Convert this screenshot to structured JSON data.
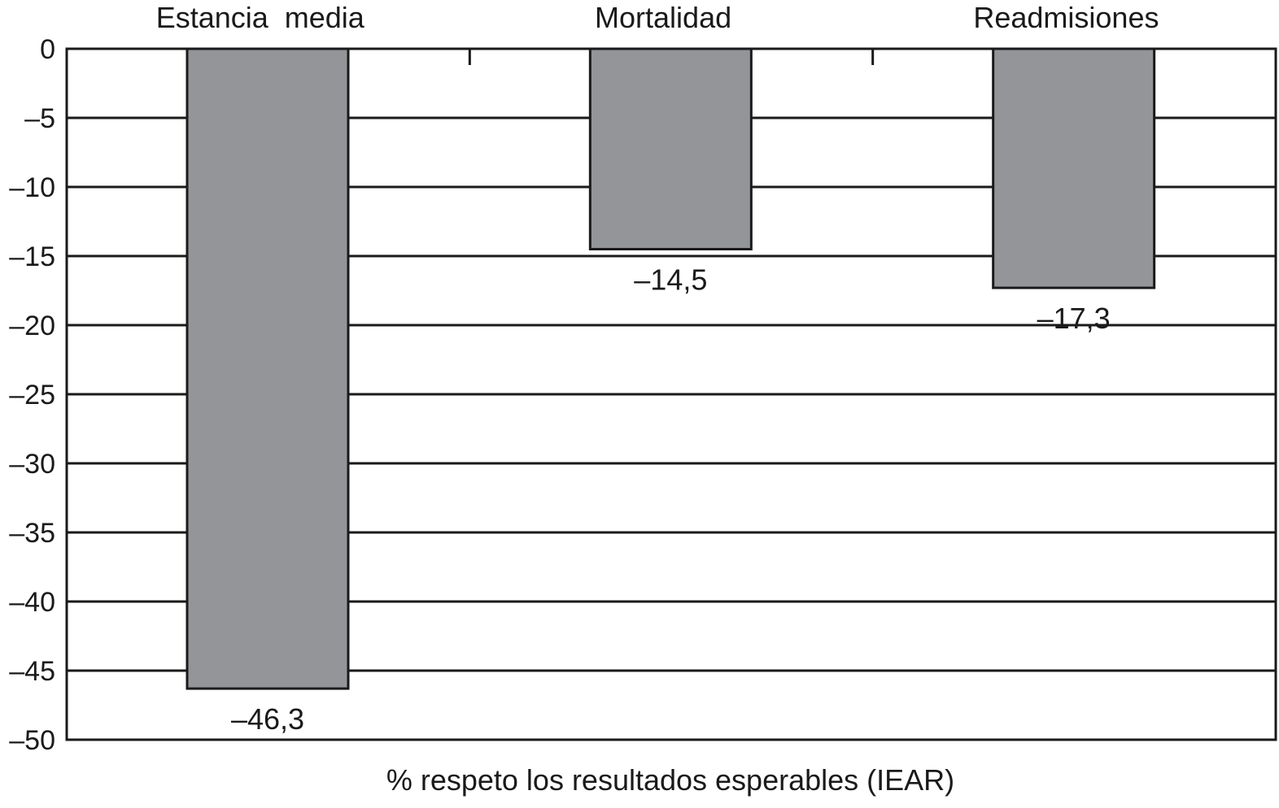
{
  "chart_data": {
    "type": "bar",
    "categories": [
      "Estancia  media",
      "Mortalidad",
      "Readmisiones"
    ],
    "values": [
      -46.3,
      -14.5,
      -17.3
    ],
    "data_labels": [
      "–46,3",
      "–14,5",
      "–17,3"
    ],
    "y_ticks": [
      0,
      -5,
      -10,
      -15,
      -20,
      -25,
      -30,
      -35,
      -40,
      -45,
      -50
    ],
    "y_tick_labels": [
      "0",
      "–5",
      "–10",
      "–15",
      "–20",
      "–25",
      "–30",
      "–35",
      "–40",
      "–45",
      "–50"
    ],
    "ylim": [
      -50,
      0
    ],
    "xlabel": "% respeto los resultados esperables (IEAR)",
    "ylabel": "",
    "category_axis_position": "top",
    "grid": true,
    "legend": "none",
    "bar_color": "#939598"
  }
}
